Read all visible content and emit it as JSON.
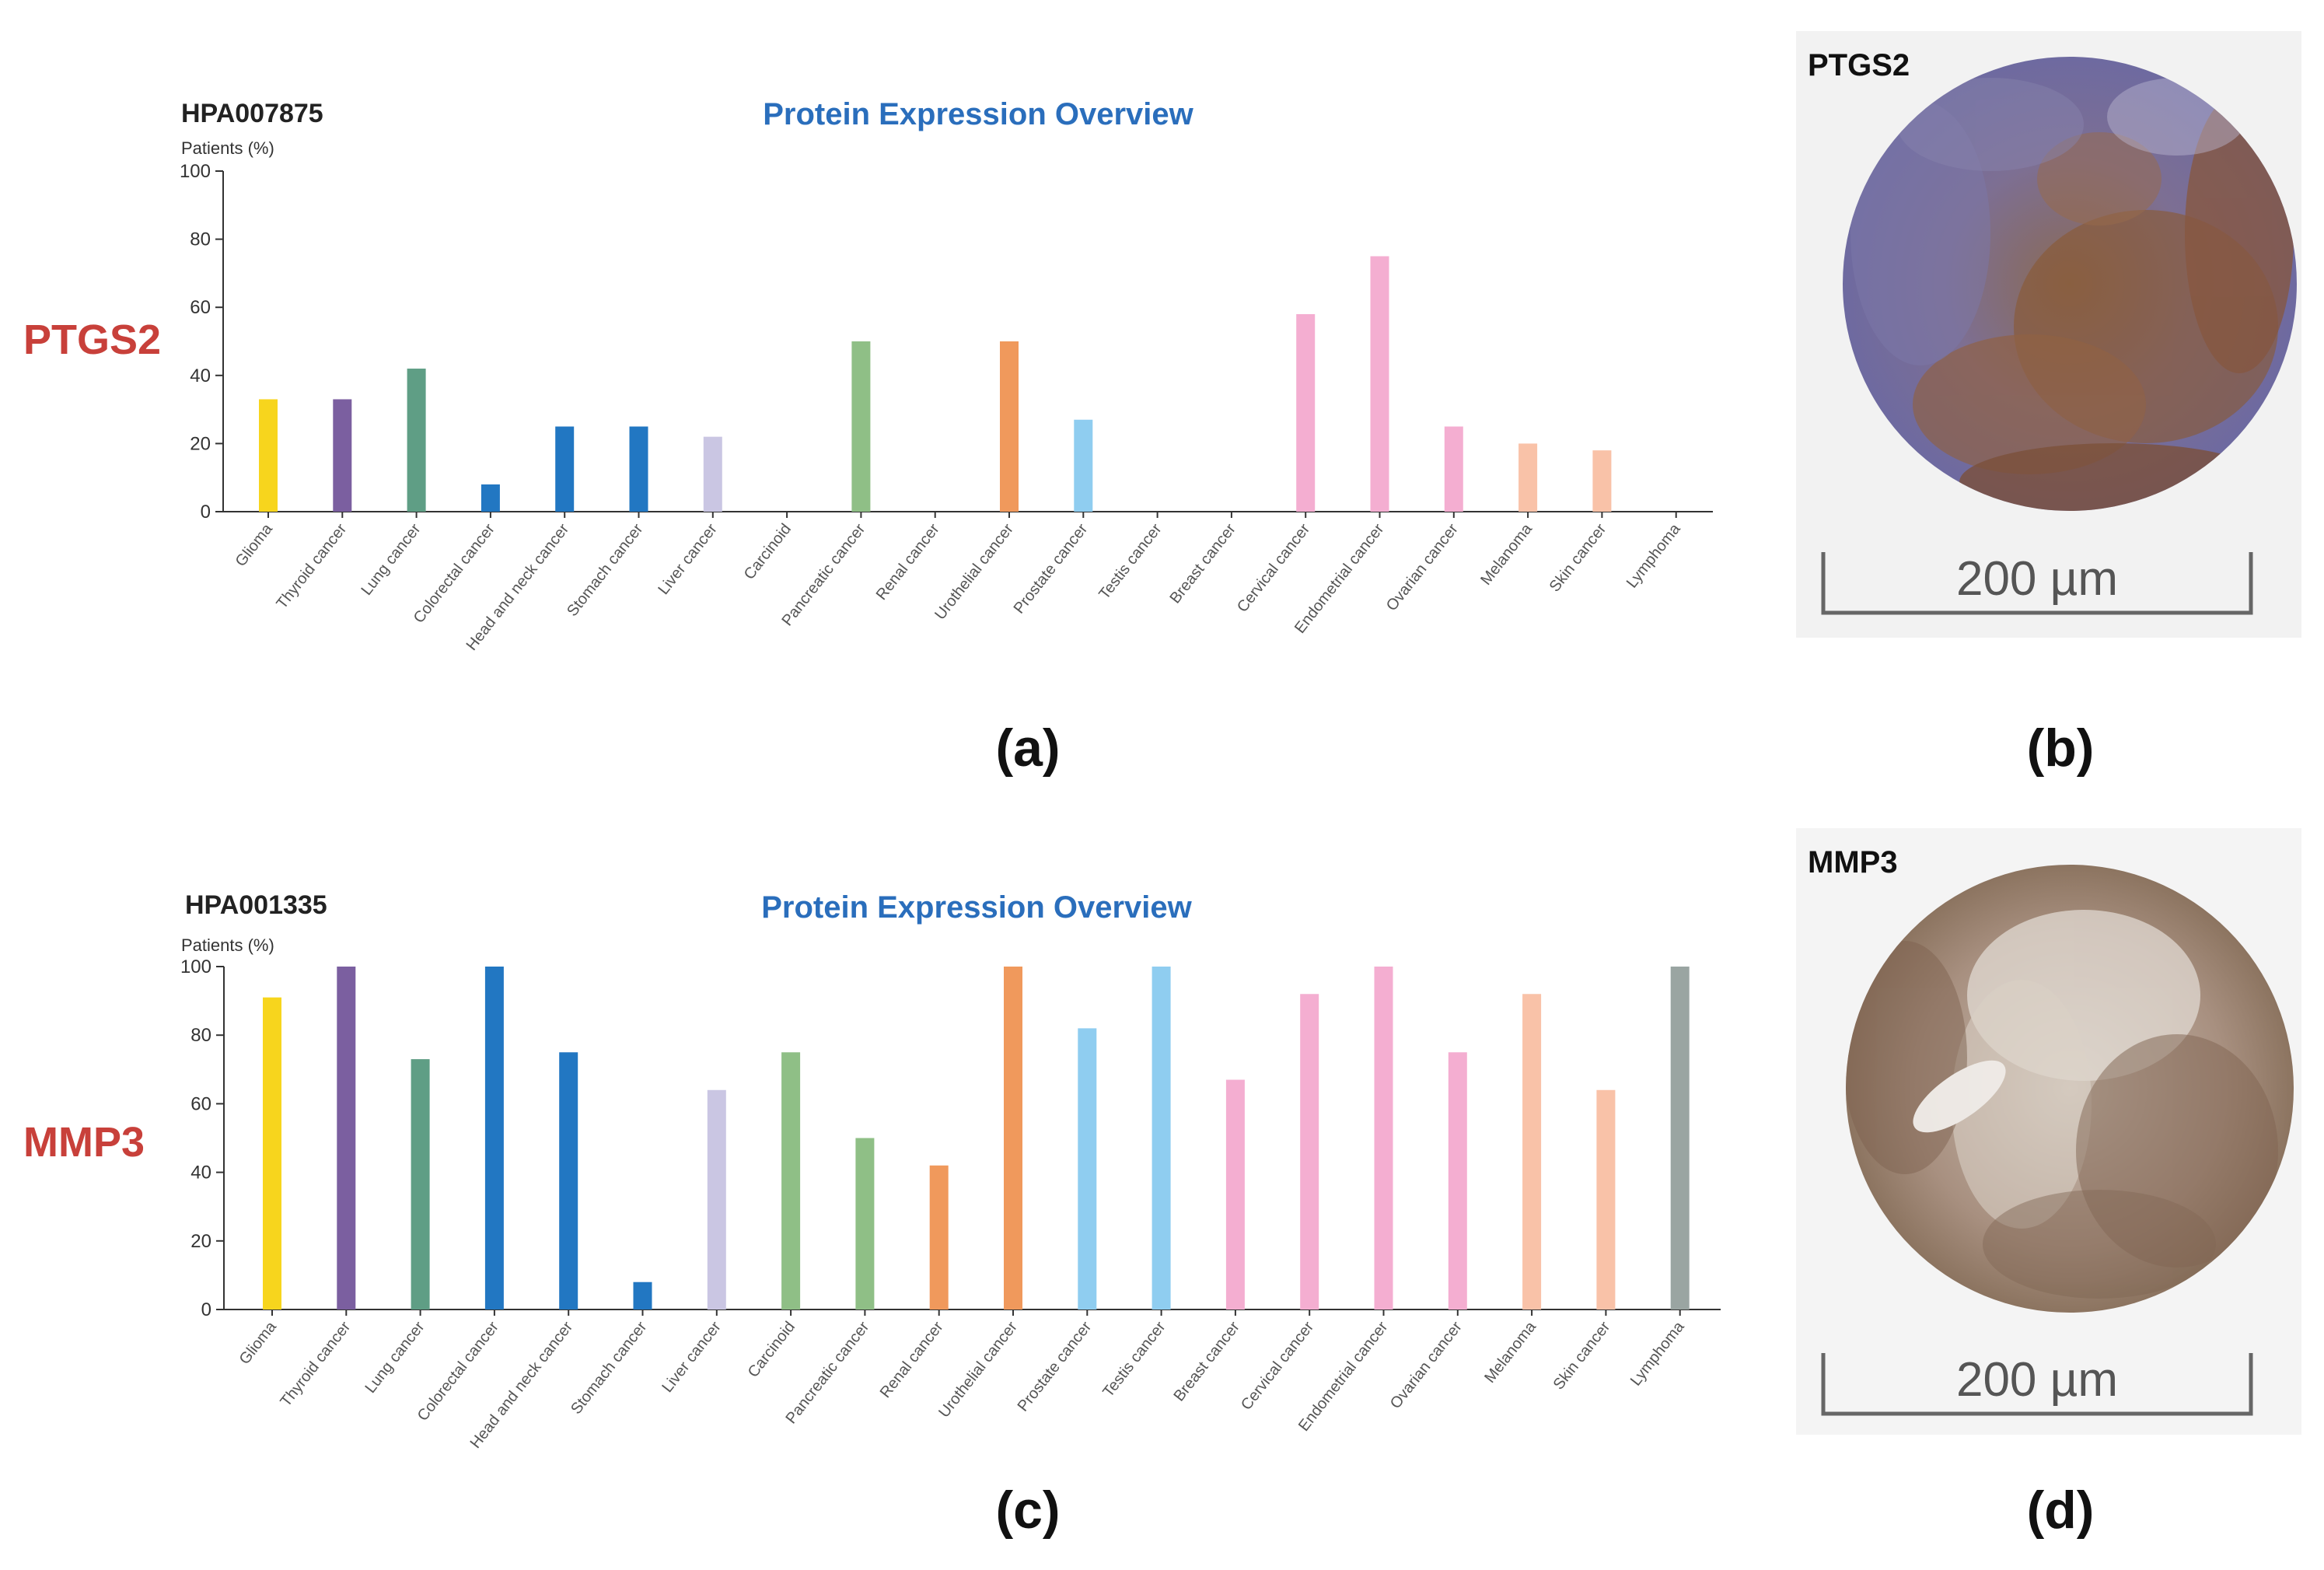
{
  "chart_data": [
    {
      "type": "bar",
      "gene": "PTGS2",
      "antibody": "HPA007875",
      "title": "Protein Expression Overview",
      "ylabel": "Patients (%)",
      "ylim": [
        0,
        100
      ],
      "yticks": [
        "0",
        "20",
        "40",
        "60",
        "80",
        "100"
      ],
      "categories": [
        "Glioma",
        "Thyroid cancer",
        "Lung cancer",
        "Colorectal cancer",
        "Head and neck cancer",
        "Stomach cancer",
        "Liver cancer",
        "Carcinoid",
        "Pancreatic cancer",
        "Renal cancer",
        "Urothelial cancer",
        "Prostate cancer",
        "Testis cancer",
        "Breast cancer",
        "Cervical cancer",
        "Endometrial cancer",
        "Ovarian cancer",
        "Melanoma",
        "Skin cancer",
        "Lymphoma"
      ],
      "values": [
        33,
        33,
        42,
        8,
        25,
        25,
        22,
        0,
        50,
        0,
        50,
        27,
        0,
        0,
        58,
        75,
        25,
        20,
        18,
        0
      ],
      "colors": [
        "#f7d51d",
        "#7b5fa0",
        "#5f9e85",
        "#2277c2",
        "#2277c2",
        "#2277c2",
        "#cac6e3",
        "#8fbf86",
        "#8fbf86",
        "#f0995c",
        "#f0995c",
        "#8fcdf0",
        "#8fcdf0",
        "#f4aed1",
        "#f4aed1",
        "#f4aed1",
        "#f4aed1",
        "#f9c2a8",
        "#f9c2a8",
        "#9aa5a2"
      ],
      "panel": "(a)"
    },
    {
      "type": "bar",
      "gene": "MMP3",
      "antibody": "HPA001335",
      "title": "Protein Expression Overview",
      "ylabel": "Patients (%)",
      "ylim": [
        0,
        100
      ],
      "yticks": [
        "0",
        "20",
        "40",
        "60",
        "80",
        "100"
      ],
      "categories": [
        "Glioma",
        "Thyroid cancer",
        "Lung cancer",
        "Colorectal cancer",
        "Head and neck cancer",
        "Stomach cancer",
        "Liver cancer",
        "Carcinoid",
        "Pancreatic cancer",
        "Renal cancer",
        "Urothelial cancer",
        "Prostate cancer",
        "Testis cancer",
        "Breast cancer",
        "Cervical cancer",
        "Endometrial cancer",
        "Ovarian cancer",
        "Melanoma",
        "Skin cancer",
        "Lymphoma"
      ],
      "values": [
        91,
        100,
        73,
        100,
        75,
        8,
        64,
        75,
        50,
        42,
        100,
        82,
        100,
        67,
        92,
        100,
        75,
        92,
        64,
        100
      ],
      "colors": [
        "#f7d51d",
        "#7b5fa0",
        "#5f9e85",
        "#2277c2",
        "#2277c2",
        "#2277c2",
        "#cac6e3",
        "#8fbf86",
        "#8fbf86",
        "#f0995c",
        "#f0995c",
        "#8fcdf0",
        "#8fcdf0",
        "#f4aed1",
        "#f4aed1",
        "#f4aed1",
        "#f4aed1",
        "#f9c2a8",
        "#f9c2a8",
        "#9aa5a2"
      ],
      "panel": "(c)"
    }
  ],
  "images": [
    {
      "label": "PTGS2",
      "scale_bar": "200 µm",
      "panel": "(b)",
      "stain": "brown-on-blue"
    },
    {
      "label": "MMP3",
      "scale_bar": "200 µm",
      "panel": "(d)",
      "stain": "brown-on-white"
    }
  ]
}
